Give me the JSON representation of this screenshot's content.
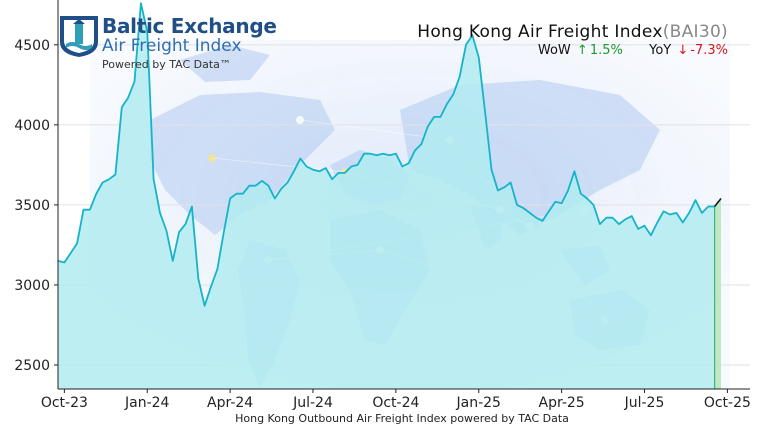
{
  "logo": {
    "brand": "Baltic Exchange",
    "subtitle": "Air Freight Index",
    "powered_by": "Powered by TAC Data™",
    "colors": {
      "primary": "#1f4f86",
      "secondary": "#2f6fb0"
    }
  },
  "header": {
    "title": "Hong Kong Air Freight Index",
    "code": "(BAI30)",
    "wow_label": "WoW",
    "wow_arrow": "↑",
    "wow_value": "1.5%",
    "yoy_label": "YoY",
    "yoy_arrow": "↓",
    "yoy_value": "-7.3%"
  },
  "chart_data": {
    "type": "area",
    "title": "Hong Kong Air Freight Index (BAI30)",
    "xlabel": "Hong Kong Outbound Air Freight Index powered by TAC Data",
    "ylabel": "",
    "ylim": [
      2350,
      4780
    ],
    "yticks": [
      2500,
      3000,
      3500,
      4000,
      4500
    ],
    "xticks": [
      "Oct-23",
      "Jan-24",
      "Apr-24",
      "Jul-24",
      "Oct-24",
      "Jan-25",
      "Apr-25",
      "Jul-25",
      "Oct-25"
    ],
    "grid": "horizontal",
    "background": "world map",
    "colors": {
      "line": "#15b4c9",
      "fill": "#b2ebf0",
      "last_segment": "#111111",
      "last_fill": "#bfe8c4"
    },
    "series": [
      {
        "values": [
          3150,
          3140,
          3200,
          3260,
          3470,
          3470,
          3570,
          3640,
          3660,
          3690,
          4110,
          4170,
          4270,
          4760,
          4580,
          3660,
          3450,
          3340,
          3150,
          3330,
          3380,
          3490,
          3040,
          2870,
          2990,
          3100,
          3330,
          3540,
          3570,
          3570,
          3620,
          3620,
          3650,
          3620,
          3540,
          3600,
          3640,
          3710,
          3790,
          3740,
          3720,
          3710,
          3730,
          3660,
          3700,
          3700,
          3740,
          3750,
          3820,
          3820,
          3810,
          3820,
          3810,
          3820,
          3740,
          3760,
          3840,
          3880,
          3990,
          4050,
          4050,
          4130,
          4190,
          4300,
          4500,
          4560,
          4420,
          4080,
          3720,
          3590,
          3610,
          3640,
          3500,
          3480,
          3450,
          3420,
          3400,
          3460,
          3520,
          3510,
          3590,
          3710,
          3570,
          3540,
          3500,
          3380,
          3420,
          3420,
          3380,
          3410,
          3430,
          3350,
          3370,
          3310,
          3390,
          3460,
          3440,
          3450,
          3390,
          3450,
          3530,
          3450,
          3490,
          3490,
          3540
        ]
      }
    ]
  }
}
